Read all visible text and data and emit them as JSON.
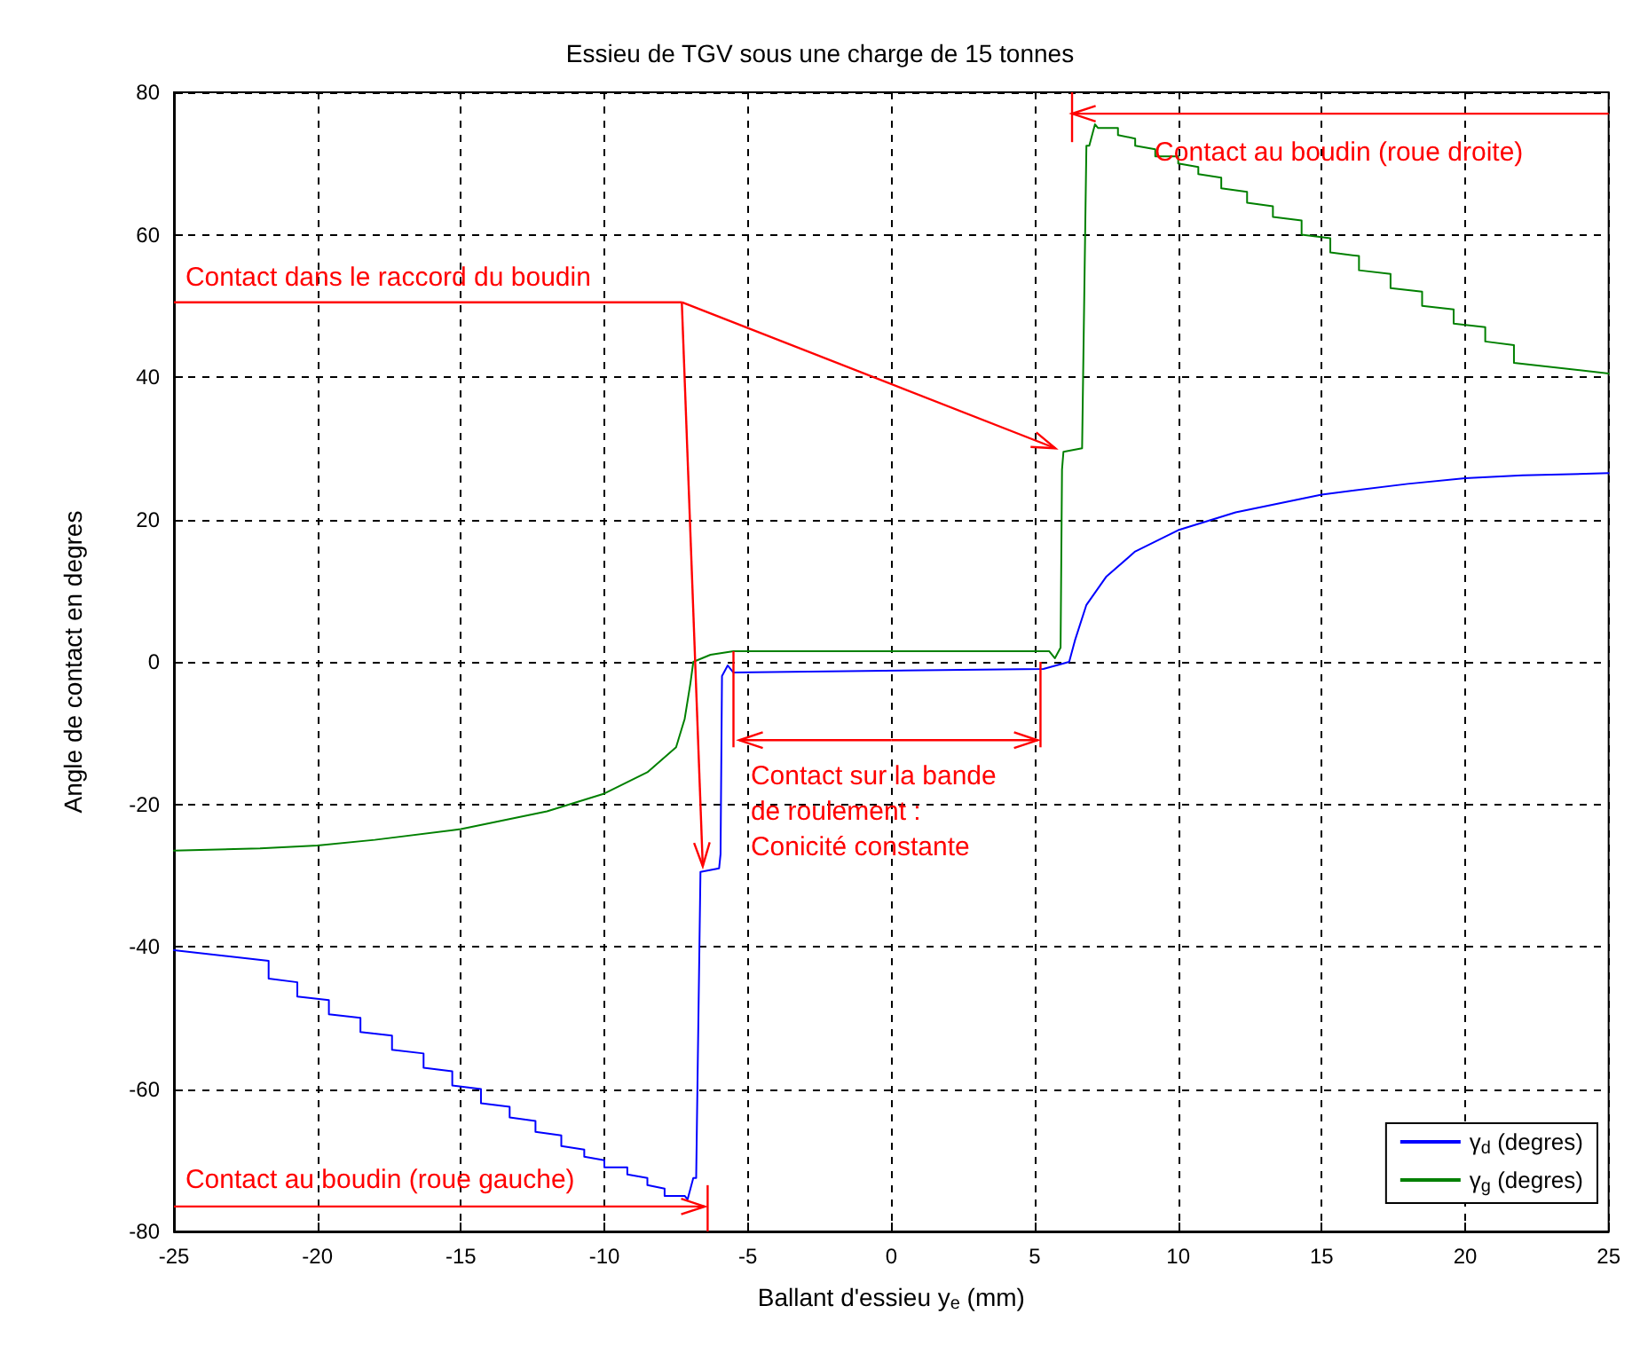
{
  "chart_data": {
    "type": "line",
    "title": "Essieu de TGV sous une charge de 15 tonnes",
    "xlabel": "Ballant d'essieu y$_{e}$ (mm)",
    "ylabel": "Angle de contact en degres",
    "xlim": [
      -25,
      25
    ],
    "xticks": [
      -25,
      -20,
      -15,
      -10,
      -5,
      0,
      5,
      10,
      15,
      20,
      25
    ],
    "ylim": [
      -80,
      80
    ],
    "yticks": [
      -80,
      -60,
      -40,
      -20,
      0,
      20,
      40,
      60,
      80
    ],
    "grid": true,
    "legend": "bottom right",
    "marker": "none",
    "line_style": "solid",
    "series": [
      {
        "name": "γ$_{d}$ (degres)",
        "color": "#0000ff",
        "x": [
          -25,
          -21.7,
          -21.7,
          -20.7,
          -20.7,
          -19.6,
          -19.6,
          -18.5,
          -18.5,
          -17.4,
          -17.4,
          -16.3,
          -16.3,
          -15.3,
          -15.3,
          -14.3,
          -14.3,
          -13.3,
          -13.3,
          -12.4,
          -12.4,
          -11.5,
          -11.5,
          -10.7,
          -10.7,
          -10,
          -10,
          -9.2,
          -9.2,
          -8.5,
          -8.5,
          -7.9,
          -7.9,
          -7.2,
          -7.1,
          -6.9,
          -6.8,
          -6.65,
          -6,
          -5.95,
          -5.9,
          -5.7,
          -5.5,
          5.3,
          6.2,
          6.4,
          6.8,
          7.5,
          8.5,
          10,
          12,
          15,
          18,
          20,
          22,
          25
        ],
        "values": [
          -40.5,
          -42,
          -44.5,
          -45,
          -47,
          -47.5,
          -49.5,
          -50,
          -52,
          -52.5,
          -54.5,
          -55,
          -57,
          -57.5,
          -59.5,
          -60,
          -62,
          -62.5,
          -64,
          -64.5,
          -66,
          -66.5,
          -68,
          -68.5,
          -69.5,
          -70,
          -71,
          -71,
          -72,
          -72.5,
          -73.5,
          -74,
          -75,
          -75,
          -75.5,
          -72.5,
          -72.5,
          -29.5,
          -29,
          -27,
          -2,
          -0.5,
          -1.5,
          -1,
          0,
          3,
          8,
          12,
          15.5,
          18.5,
          21,
          23.5,
          25,
          25.8,
          26.2,
          26.5
        ]
      },
      {
        "name": "γ$_{g}$ (degres)",
        "color": "#008000",
        "x": [
          -25,
          -22,
          -20,
          -18,
          -15,
          -12,
          -10,
          -8.5,
          -7.5,
          -7.2,
          -7,
          -6.9,
          -6.3,
          -5.5,
          5.5,
          5.7,
          5.9,
          5.95,
          6,
          6.65,
          6.8,
          6.9,
          7.1,
          7.2,
          7.9,
          7.9,
          8.5,
          8.5,
          9.2,
          9.2,
          10,
          10,
          10.7,
          10.7,
          11.5,
          11.5,
          12.4,
          12.4,
          13.3,
          13.3,
          14.3,
          14.3,
          15.3,
          15.3,
          16.3,
          16.3,
          17.4,
          17.4,
          18.5,
          18.5,
          19.6,
          19.6,
          20.7,
          20.7,
          21.7,
          21.7,
          25
        ],
        "values": [
          -26.5,
          -26.2,
          -25.8,
          -25,
          -23.5,
          -21,
          -18.5,
          -15.5,
          -12,
          -8,
          -3,
          0,
          1,
          1.5,
          1.5,
          0.5,
          2,
          27,
          29.5,
          30,
          72.5,
          72.5,
          75.5,
          75,
          75,
          74,
          73.5,
          72.5,
          72,
          71,
          71,
          70,
          69.5,
          68.5,
          68,
          66.5,
          66,
          64.5,
          64,
          62.5,
          62,
          60,
          59.5,
          57.5,
          57,
          55,
          54.5,
          52.5,
          52,
          50,
          49.5,
          47.5,
          47,
          45,
          44.5,
          42,
          40.5
        ]
      }
    ],
    "annotations": [
      "Contact au boudin (roue droite)",
      "Contact dans le raccord du boudin",
      {
        "text": "Contact sur la bande\nde roulement :\nConicité constante",
        "x": -5.5,
        "y": 1.5
      },
      "Contact au boudin (roue gauche)"
    ]
  }
}
